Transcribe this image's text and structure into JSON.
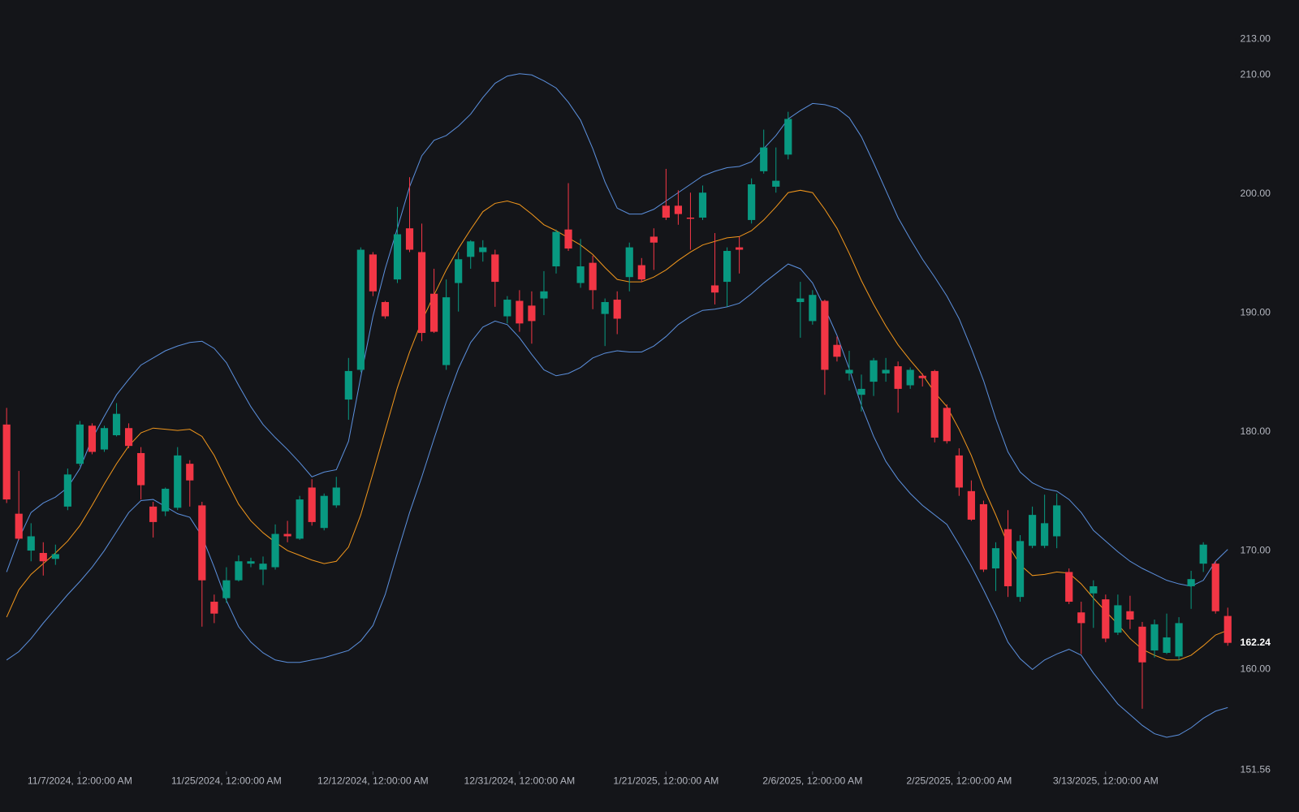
{
  "chart_data": {
    "type": "candlestick",
    "categories": [
      null,
      null,
      null,
      null,
      null,
      null,
      "11/7/2024, 12:00:00 AM",
      null,
      null,
      null,
      null,
      null,
      null,
      null,
      null,
      null,
      null,
      null,
      "11/25/2024, 12:00:00 AM",
      null,
      null,
      null,
      null,
      null,
      null,
      null,
      null,
      null,
      null,
      null,
      "12/12/2024, 12:00:00 AM",
      null,
      null,
      null,
      null,
      null,
      null,
      null,
      null,
      null,
      null,
      null,
      "12/31/2024, 12:00:00 AM",
      null,
      null,
      null,
      null,
      null,
      null,
      null,
      null,
      null,
      null,
      null,
      "1/21/2025, 12:00:00 AM",
      null,
      null,
      null,
      null,
      null,
      null,
      null,
      null,
      null,
      null,
      null,
      "2/6/2025, 12:00:00 AM",
      null,
      null,
      null,
      null,
      null,
      null,
      null,
      null,
      null,
      null,
      null,
      "2/25/2025, 12:00:00 AM",
      null,
      null,
      null,
      null,
      null,
      null,
      null,
      null,
      null,
      null,
      null,
      "3/13/2025, 12:00:00 AM",
      null,
      null,
      null,
      null,
      null,
      null,
      null,
      null,
      null,
      null
    ],
    "open": [
      180.6,
      173.1,
      170.0,
      169.8,
      169.3,
      173.7,
      177.3,
      180.5,
      178.5,
      179.7,
      180.3,
      178.2,
      173.7,
      173.3,
      173.6,
      177.3,
      173.8,
      165.7,
      166.0,
      167.5,
      168.9,
      168.4,
      168.6,
      171.4,
      171.0,
      175.3,
      171.9,
      173.8,
      182.7,
      185.2,
      194.9,
      190.9,
      192.8,
      197.1,
      195.1,
      191.6,
      185.6,
      192.5,
      194.7,
      195.1,
      194.9,
      189.7,
      191.0,
      190.6,
      191.2,
      193.9,
      197.0,
      192.5,
      194.2,
      189.9,
      191.1,
      193.0,
      194.0,
      196.4,
      199.0,
      199.0,
      198.0,
      198.0,
      192.3,
      192.6,
      195.5,
      197.8,
      201.9,
      200.6,
      203.3,
      190.9,
      189.3,
      191.0,
      187.3,
      184.9,
      183.1,
      184.2,
      184.9,
      185.5,
      183.9,
      184.7,
      185.1,
      182.0,
      178.0,
      175.0,
      173.9,
      168.5,
      171.8,
      166.1,
      170.4,
      170.4,
      171.2,
      168.2,
      164.8,
      166.4,
      165.9,
      163.1,
      164.9,
      163.6,
      161.6,
      161.4,
      161.1,
      167.0,
      168.9,
      168.9,
      164.5
    ],
    "high": [
      182.0,
      176.7,
      172.3,
      170.7,
      170.5,
      176.9,
      180.9,
      180.7,
      180.5,
      182.4,
      180.7,
      178.7,
      174.1,
      175.3,
      178.7,
      177.6,
      174.1,
      166.3,
      168.6,
      169.6,
      169.4,
      169.5,
      172.2,
      172.5,
      174.6,
      176.0,
      174.8,
      176.2,
      186.2,
      195.5,
      195.1,
      191.0,
      198.9,
      201.4,
      197.5,
      193.7,
      192.8,
      195.1,
      196.1,
      196.1,
      195.3,
      191.4,
      191.9,
      191.8,
      193.5,
      197.0,
      200.9,
      196.2,
      194.8,
      191.2,
      191.8,
      195.9,
      194.6,
      197.1,
      202.1,
      200.3,
      200.1,
      200.7,
      196.7,
      195.5,
      196.4,
      201.3,
      205.4,
      203.9,
      206.9,
      192.6,
      191.9,
      191.1,
      188.0,
      186.8,
      184.8,
      186.2,
      186.2,
      185.9,
      185.4,
      184.9,
      185.2,
      182.3,
      178.6,
      175.9,
      174.2,
      170.7,
      173.4,
      171.3,
      173.7,
      174.7,
      174.8,
      168.5,
      165.7,
      167.5,
      166.3,
      166.3,
      166.2,
      164.0,
      164.2,
      164.7,
      164.4,
      168.3,
      170.7,
      169.1,
      165.2
    ],
    "low": [
      174.0,
      170.9,
      169.1,
      167.9,
      168.8,
      173.4,
      177.1,
      178.1,
      178.3,
      179.6,
      178.6,
      174.3,
      171.1,
      172.9,
      173.4,
      173.7,
      163.6,
      163.9,
      165.6,
      167.4,
      168.6,
      167.1,
      168.4,
      170.7,
      170.9,
      172.1,
      171.7,
      173.6,
      181.0,
      185.0,
      191.4,
      189.5,
      192.5,
      195.1,
      187.6,
      188.3,
      185.2,
      190.1,
      193.7,
      194.3,
      190.5,
      189.1,
      188.4,
      187.4,
      189.8,
      193.3,
      195.2,
      192.1,
      190.3,
      187.2,
      188.2,
      191.8,
      192.6,
      193.6,
      197.8,
      197.4,
      195.3,
      197.8,
      190.7,
      190.5,
      193.3,
      197.5,
      201.7,
      200.1,
      202.9,
      187.9,
      189.0,
      183.1,
      185.9,
      184.3,
      181.7,
      183.0,
      184.2,
      181.6,
      183.6,
      183.8,
      179.1,
      179.0,
      174.6,
      172.5,
      168.2,
      166.6,
      166.1,
      165.7,
      170.2,
      170.2,
      170.2,
      165.5,
      161.3,
      163.5,
      162.3,
      162.9,
      163.4,
      156.7,
      161.0,
      161.3,
      160.8,
      165.1,
      168.2,
      164.7,
      162.0
    ],
    "close": [
      174.3,
      171.0,
      171.2,
      169.1,
      169.7,
      176.4,
      180.6,
      178.3,
      180.3,
      181.5,
      178.8,
      175.5,
      172.4,
      175.2,
      178.0,
      175.9,
      167.5,
      164.7,
      167.5,
      169.1,
      169.1,
      168.9,
      171.4,
      171.2,
      174.3,
      172.4,
      174.6,
      175.3,
      185.1,
      195.3,
      191.8,
      189.7,
      196.6,
      195.3,
      188.3,
      188.4,
      191.3,
      194.5,
      196.0,
      195.5,
      192.6,
      191.1,
      189.1,
      189.3,
      191.8,
      196.8,
      195.4,
      193.9,
      191.9,
      190.9,
      189.5,
      195.5,
      192.8,
      195.9,
      198.0,
      198.3,
      197.9,
      200.1,
      191.7,
      195.2,
      195.3,
      200.8,
      203.9,
      201.1,
      206.3,
      191.2,
      191.5,
      185.2,
      186.3,
      185.2,
      183.6,
      186.0,
      185.2,
      183.6,
      185.2,
      184.5,
      179.5,
      179.2,
      175.3,
      172.6,
      168.4,
      170.2,
      167.0,
      170.8,
      173.0,
      172.3,
      173.8,
      165.7,
      163.9,
      167.0,
      162.6,
      165.4,
      164.2,
      160.6,
      163.8,
      162.7,
      163.9,
      167.6,
      170.5,
      164.9,
      162.24
    ],
    "up_color": "#089981",
    "down_color": "#f23645",
    "overlays": [
      {
        "color": "#5b8fdc",
        "values": [
          168.2,
          171.0,
          173.2,
          174.0,
          174.5,
          175.3,
          176.9,
          179.4,
          181.3,
          183.1,
          184.4,
          185.6,
          186.2,
          186.8,
          187.2,
          187.5,
          187.6,
          187.0,
          185.8,
          183.9,
          182.1,
          180.6,
          179.5,
          178.5,
          177.4,
          176.2,
          176.6,
          176.8,
          179.2,
          184.6,
          189.7,
          193.7,
          197.1,
          200.6,
          203.2,
          204.5,
          204.9,
          205.7,
          206.7,
          208.1,
          209.3,
          209.9,
          210.1,
          210.0,
          209.5,
          208.9,
          207.7,
          206.2,
          203.8,
          201.0,
          198.8,
          198.3,
          198.3,
          198.7,
          199.4,
          200.1,
          200.8,
          201.5,
          201.9,
          202.2,
          202.3,
          202.7,
          203.8,
          204.9,
          206.3,
          207.0,
          207.6,
          207.5,
          207.2,
          206.4,
          204.8,
          202.6,
          200.3,
          198.0,
          196.2,
          194.5,
          193.0,
          191.4,
          189.5,
          187.0,
          184.3,
          181.1,
          178.3,
          176.6,
          175.7,
          175.2,
          175.0,
          174.3,
          173.2,
          171.7,
          170.8,
          169.9,
          169.1,
          168.5,
          168.0,
          167.5,
          167.2,
          167.0,
          167.5,
          169.1,
          170.1
        ]
      },
      {
        "color": "#f0961c",
        "values": [
          164.4,
          166.7,
          168.0,
          168.9,
          169.8,
          170.8,
          172.1,
          173.8,
          175.6,
          177.3,
          178.8,
          179.9,
          180.3,
          180.2,
          180.1,
          180.2,
          179.6,
          178.0,
          175.9,
          173.9,
          172.5,
          171.5,
          170.7,
          170.0,
          169.6,
          169.2,
          168.9,
          169.1,
          170.3,
          173.0,
          176.5,
          180.1,
          183.7,
          186.7,
          189.3,
          191.5,
          193.6,
          195.4,
          197.0,
          198.5,
          199.2,
          199.4,
          199.1,
          198.3,
          197.4,
          196.9,
          196.3,
          195.7,
          194.9,
          193.8,
          192.8,
          192.6,
          192.6,
          193.0,
          193.6,
          194.4,
          195.1,
          195.7,
          196.0,
          196.3,
          196.4,
          196.9,
          197.8,
          198.9,
          200.1,
          200.3,
          200.1,
          198.7,
          197.1,
          195.0,
          192.7,
          190.7,
          188.9,
          187.3,
          186.0,
          184.8,
          183.3,
          182.1,
          180.2,
          178.0,
          175.3,
          173.0,
          170.5,
          168.8,
          167.9,
          168.0,
          168.2,
          168.1,
          167.2,
          166.0,
          164.9,
          163.8,
          162.6,
          161.7,
          161.2,
          160.8,
          160.8,
          161.2,
          162.0,
          162.9,
          163.3
        ]
      },
      {
        "color": "#5b8fdc",
        "values": [
          160.8,
          161.5,
          162.6,
          163.9,
          165.1,
          166.3,
          167.4,
          168.6,
          170.0,
          171.6,
          173.2,
          174.2,
          174.3,
          173.7,
          173.1,
          172.8,
          171.2,
          168.6,
          165.8,
          163.6,
          162.3,
          161.4,
          160.8,
          160.6,
          160.6,
          160.8,
          161.0,
          161.3,
          161.6,
          162.4,
          163.7,
          166.3,
          169.8,
          173.2,
          176.2,
          179.4,
          182.5,
          185.3,
          187.5,
          188.8,
          189.3,
          189.0,
          187.9,
          186.5,
          185.2,
          184.7,
          184.9,
          185.4,
          186.2,
          186.6,
          186.8,
          186.7,
          186.7,
          187.2,
          188.0,
          189.0,
          189.7,
          190.2,
          190.3,
          190.5,
          190.8,
          191.6,
          192.5,
          193.3,
          194.1,
          193.7,
          192.5,
          190.4,
          188.1,
          185.3,
          182.2,
          179.6,
          177.5,
          176.0,
          174.8,
          173.8,
          173.0,
          172.2,
          170.5,
          168.7,
          166.7,
          164.6,
          162.3,
          160.9,
          160.0,
          160.8,
          161.3,
          161.7,
          161.2,
          159.7,
          158.4,
          157.1,
          156.2,
          155.3,
          154.6,
          154.3,
          154.5,
          155.1,
          155.9,
          156.5,
          156.8
        ]
      }
    ],
    "ylim": [
      151.5,
      216.3
    ],
    "yticks": [
      {
        "value": 213,
        "label": "213.00"
      },
      {
        "value": 210,
        "label": "210.00"
      },
      {
        "value": 200,
        "label": "200.00"
      },
      {
        "value": 190,
        "label": "190.00"
      },
      {
        "value": 180,
        "label": "180.00"
      },
      {
        "value": 170,
        "label": "170.00"
      },
      {
        "value": 160,
        "label": "160.00"
      },
      151.56
    ],
    "grid": false
  }
}
